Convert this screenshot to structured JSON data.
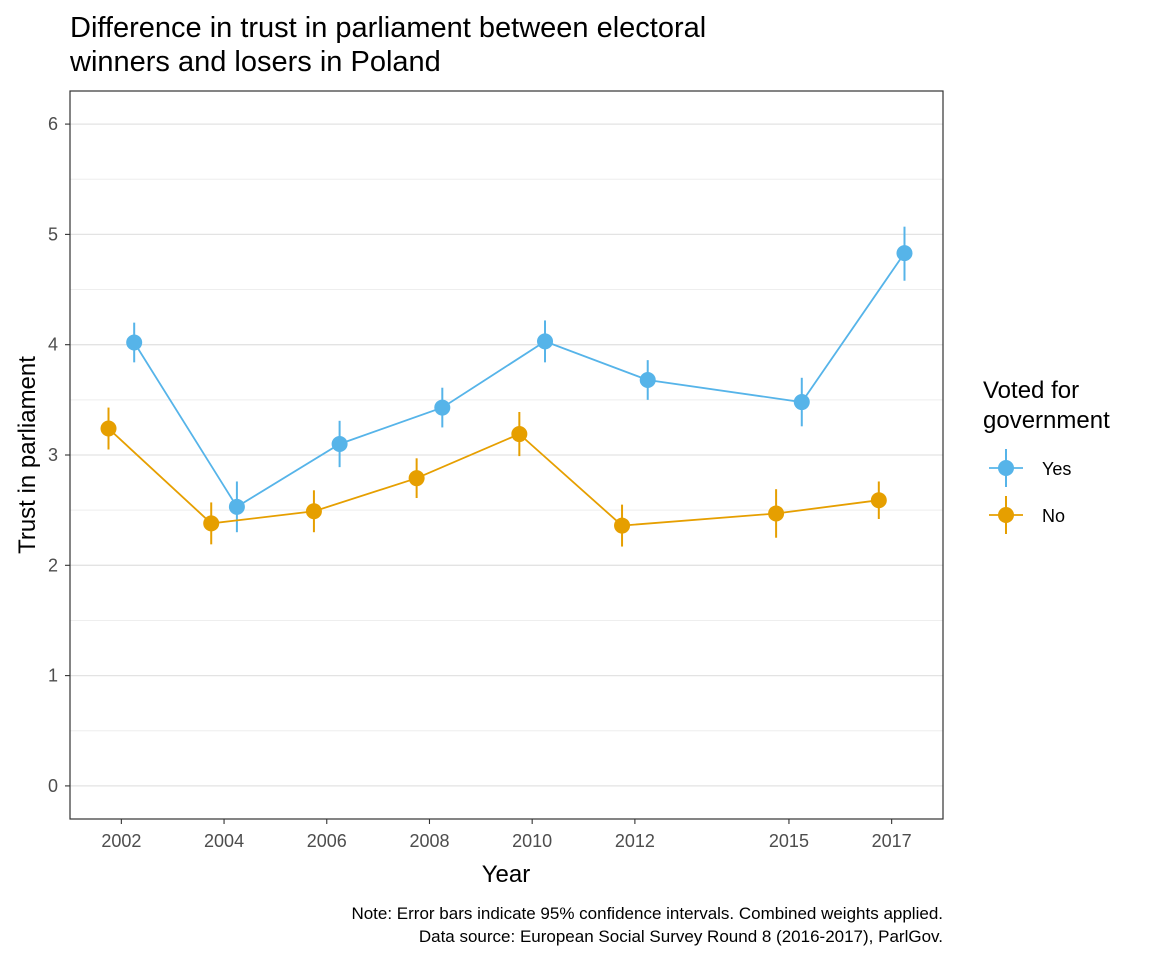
{
  "chart_data": {
    "type": "line",
    "title_lines": [
      "Difference in trust in parliament between electoral",
      "winners and losers in Poland"
    ],
    "xlabel": "Year",
    "ylabel": "Trust in parliament",
    "x_ticks": [
      2002,
      2004,
      2006,
      2008,
      2010,
      2012,
      2015,
      2017
    ],
    "y_ticks": [
      0,
      1,
      2,
      3,
      4,
      5,
      6
    ],
    "xlim": [
      2001.0,
      2018.0
    ],
    "ylim": [
      -0.3,
      6.3
    ],
    "grid": true,
    "legend": {
      "title_lines": [
        "Voted for",
        "government"
      ],
      "placement": "right"
    },
    "series": [
      {
        "name": "Yes",
        "color": "#56B4E9",
        "points": [
          {
            "x": 2002,
            "dodge": 0.25,
            "y": 4.02,
            "lo": 3.84,
            "hi": 4.2
          },
          {
            "x": 2004,
            "dodge": 0.25,
            "y": 2.53,
            "lo": 2.3,
            "hi": 2.76
          },
          {
            "x": 2006,
            "dodge": 0.25,
            "y": 3.1,
            "lo": 2.89,
            "hi": 3.31
          },
          {
            "x": 2008,
            "dodge": 0.25,
            "y": 3.43,
            "lo": 3.25,
            "hi": 3.61
          },
          {
            "x": 2010,
            "dodge": 0.25,
            "y": 4.03,
            "lo": 3.84,
            "hi": 4.22
          },
          {
            "x": 2012,
            "dodge": 0.25,
            "y": 3.68,
            "lo": 3.5,
            "hi": 3.86
          },
          {
            "x": 2015,
            "dodge": 0.25,
            "y": 3.48,
            "lo": 3.26,
            "hi": 3.7
          },
          {
            "x": 2017,
            "dodge": 0.25,
            "y": 4.83,
            "lo": 4.58,
            "hi": 5.07
          }
        ]
      },
      {
        "name": "No",
        "color": "#E69F00",
        "points": [
          {
            "x": 2002,
            "dodge": -0.25,
            "y": 3.24,
            "lo": 3.05,
            "hi": 3.43
          },
          {
            "x": 2004,
            "dodge": -0.25,
            "y": 2.38,
            "lo": 2.19,
            "hi": 2.57
          },
          {
            "x": 2006,
            "dodge": -0.25,
            "y": 2.49,
            "lo": 2.3,
            "hi": 2.68
          },
          {
            "x": 2008,
            "dodge": -0.25,
            "y": 2.79,
            "lo": 2.61,
            "hi": 2.97
          },
          {
            "x": 2010,
            "dodge": -0.25,
            "y": 3.19,
            "lo": 2.99,
            "hi": 3.39
          },
          {
            "x": 2012,
            "dodge": -0.25,
            "y": 2.36,
            "lo": 2.17,
            "hi": 2.55
          },
          {
            "x": 2015,
            "dodge": -0.25,
            "y": 2.47,
            "lo": 2.25,
            "hi": 2.69
          },
          {
            "x": 2017,
            "dodge": -0.25,
            "y": 2.59,
            "lo": 2.42,
            "hi": 2.76
          }
        ]
      }
    ],
    "caption_lines": [
      "Note: Error bars indicate 95% confidence intervals. Combined weights applied.",
      "Data source: European Social Survey Round 8 (2016-2017), ParlGov."
    ]
  }
}
